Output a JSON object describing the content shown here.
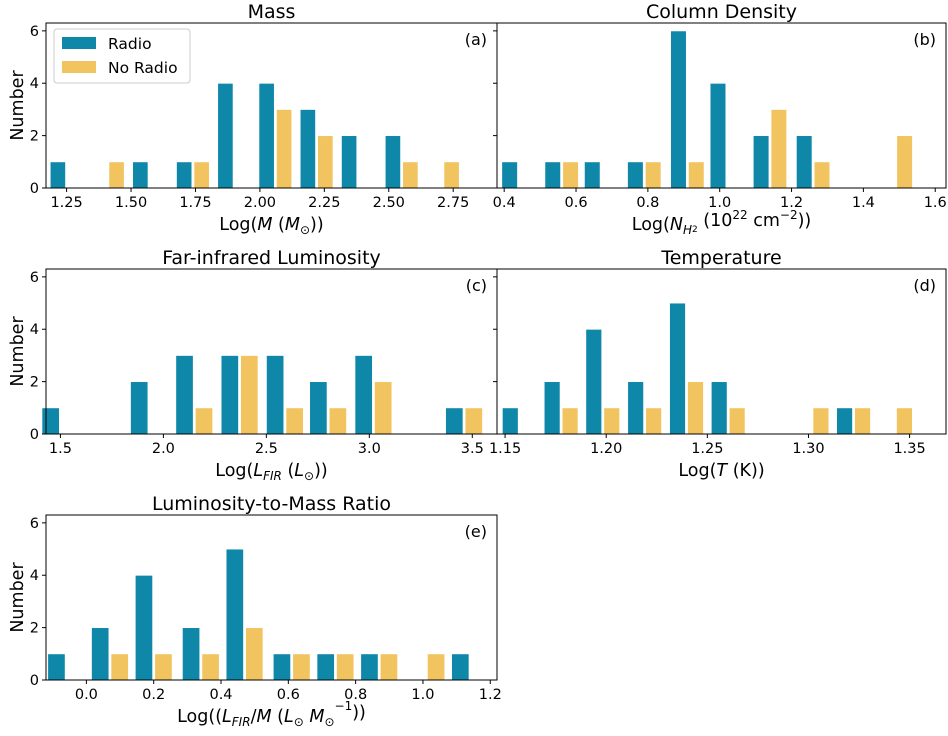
{
  "colors": {
    "radio": "#0e87a8",
    "no_radio": "#f2c460"
  },
  "legend": {
    "entries": [
      {
        "label": "Radio",
        "color": "#0e87a8"
      },
      {
        "label": "No Radio",
        "color": "#f2c460"
      }
    ],
    "placement": "upper-left of panel (a)"
  },
  "chart_data": [
    {
      "type": "bar",
      "panel": "(a)",
      "title": "Mass",
      "xlabel": "Log(M (M⊙))",
      "ylabel": "Number",
      "xlim": [
        1.17,
        2.92
      ],
      "ylim": [
        0,
        6.3
      ],
      "xticks": [
        "1.25",
        "1.50",
        "1.75",
        "2.00",
        "2.25",
        "2.50",
        "2.75"
      ],
      "xtick_values": [
        1.25,
        1.5,
        1.75,
        2.0,
        2.25,
        2.5,
        2.75
      ],
      "yticks": [
        0,
        2,
        4,
        6
      ],
      "bar_width": 0.06,
      "series": [
        {
          "name": "Radio",
          "x": [
            1.25,
            1.41,
            1.57,
            1.74,
            1.9,
            2.06,
            2.22,
            2.38,
            2.55,
            2.71
          ],
          "values": [
            1,
            0,
            1,
            1,
            4,
            4,
            3,
            2,
            2,
            0
          ]
        },
        {
          "name": "No Radio",
          "x": [
            1.25,
            1.41,
            1.57,
            1.74,
            1.9,
            2.06,
            2.22,
            2.38,
            2.55,
            2.71
          ],
          "values": [
            0,
            1,
            0,
            1,
            0,
            3,
            2,
            0,
            1,
            1
          ]
        }
      ]
    },
    {
      "type": "bar",
      "panel": "(b)",
      "title": "Column Density",
      "xlabel": "Log(NH₂ (10²² cm⁻²))",
      "ylabel": "",
      "xlim": [
        0.38,
        1.63
      ],
      "ylim": [
        0,
        6.3
      ],
      "xticks": [
        "0.4",
        "0.6",
        "0.8",
        "1.0",
        "1.2",
        "1.4",
        "1.6"
      ],
      "xtick_values": [
        0.4,
        0.6,
        0.8,
        1.0,
        1.2,
        1.4,
        1.6
      ],
      "yticks": [
        0,
        2,
        4,
        6
      ],
      "bar_width": 0.044,
      "series": [
        {
          "name": "Radio",
          "x": [
            0.44,
            0.56,
            0.67,
            0.79,
            0.91,
            1.02,
            1.14,
            1.26,
            1.37,
            1.49
          ],
          "values": [
            1,
            1,
            1,
            1,
            6,
            4,
            2,
            2,
            0,
            0
          ]
        },
        {
          "name": "No Radio",
          "x": [
            0.44,
            0.56,
            0.67,
            0.79,
            0.91,
            1.02,
            1.14,
            1.26,
            1.37,
            1.49
          ],
          "values": [
            0,
            1,
            0,
            1,
            1,
            0,
            3,
            1,
            0,
            2
          ]
        }
      ]
    },
    {
      "type": "bar",
      "panel": "(c)",
      "title": "Far-infrared Luminosity",
      "xlabel": "Log(LFIR (L⊙))",
      "ylabel": "Number",
      "xlim": [
        1.43,
        3.62
      ],
      "ylim": [
        0,
        6.3
      ],
      "xticks": [
        "1.5",
        "2.0",
        "2.5",
        "3.0",
        "3.5"
      ],
      "xtick_values": [
        1.5,
        2.0,
        2.5,
        3.0,
        3.5
      ],
      "yticks": [
        0,
        2,
        4,
        6
      ],
      "bar_width": 0.085,
      "series": [
        {
          "name": "Radio",
          "x": [
            1.5,
            1.72,
            1.93,
            2.15,
            2.37,
            2.59,
            2.8,
            3.02,
            3.24,
            3.46
          ],
          "values": [
            1,
            0,
            2,
            3,
            3,
            3,
            2,
            3,
            0,
            1
          ]
        },
        {
          "name": "No Radio",
          "x": [
            1.5,
            1.72,
            1.93,
            2.15,
            2.37,
            2.59,
            2.8,
            3.02,
            3.24,
            3.46
          ],
          "values": [
            0,
            0,
            0,
            1,
            3,
            1,
            1,
            2,
            0,
            1
          ]
        }
      ]
    },
    {
      "type": "bar",
      "panel": "(d)",
      "title": "Temperature",
      "xlabel": "Log(T (K))",
      "ylabel": "",
      "xlim": [
        1.146,
        1.368
      ],
      "ylim": [
        0,
        6.3
      ],
      "xticks": [
        "1.15",
        "1.20",
        "1.25",
        "1.30",
        "1.35"
      ],
      "xtick_values": [
        1.15,
        1.2,
        1.25,
        1.3,
        1.35
      ],
      "yticks": [
        0,
        2,
        4,
        6
      ],
      "bar_width": 0.0079,
      "series": [
        {
          "name": "Radio",
          "x": [
            1.157,
            1.1777,
            1.1983,
            1.219,
            1.2397,
            1.2603,
            1.281,
            1.3017,
            1.3223,
            1.343
          ],
          "values": [
            1,
            2,
            4,
            2,
            5,
            2,
            0,
            0,
            1,
            0
          ]
        },
        {
          "name": "No Radio",
          "x": [
            1.157,
            1.1777,
            1.1983,
            1.219,
            1.2397,
            1.2603,
            1.281,
            1.3017,
            1.3223,
            1.343
          ],
          "values": [
            0,
            1,
            1,
            1,
            2,
            1,
            0,
            1,
            1,
            1
          ]
        }
      ]
    },
    {
      "type": "bar",
      "panel": "(e)",
      "title": "Luminosity-to-Mass Ratio",
      "xlabel": "Log((LFIR/M (L⊙ M⊙⁻¹))",
      "ylabel": "Number",
      "xlim": [
        -0.12,
        1.22
      ],
      "ylim": [
        0,
        6.3
      ],
      "xticks": [
        "0.0",
        "0.2",
        "0.4",
        "0.6",
        "0.8",
        "1.0",
        "1.2"
      ],
      "xtick_values": [
        0.0,
        0.2,
        0.4,
        0.6,
        0.8,
        1.0,
        1.2
      ],
      "yticks": [
        0,
        2,
        4,
        6
      ],
      "bar_width": 0.052,
      "series": [
        {
          "name": "Radio",
          "x": [
            -0.06,
            0.07,
            0.2,
            0.34,
            0.47,
            0.61,
            0.74,
            0.87,
            1.01,
            1.14
          ],
          "values": [
            1,
            2,
            4,
            2,
            5,
            1,
            1,
            1,
            0,
            1
          ]
        },
        {
          "name": "No Radio",
          "x": [
            -0.06,
            0.07,
            0.2,
            0.34,
            0.47,
            0.61,
            0.74,
            0.87,
            1.01,
            1.14
          ],
          "values": [
            0,
            1,
            1,
            1,
            2,
            1,
            1,
            1,
            1,
            0
          ]
        }
      ]
    }
  ]
}
